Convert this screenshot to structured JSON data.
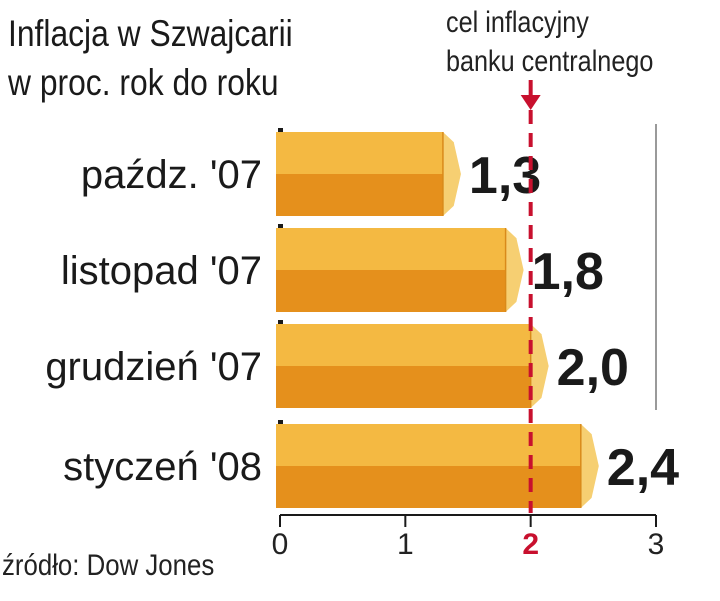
{
  "title": [
    "Inflacja w Szwajcarii",
    "w proc. rok do roku"
  ],
  "target_note": [
    "cel inflacyjny",
    "banku centralnego"
  ],
  "source": "źródło: Dow Jones",
  "colors": {
    "bar_top": "#f4b942",
    "bar_bottom": "#e5901c",
    "bar_end": "#f6cf72",
    "target_line": "#c8102e",
    "text": "#1a1a1a"
  },
  "chart_data": {
    "type": "bar",
    "orientation": "horizontal",
    "categories": [
      "paźdz. '07",
      "listopad '07",
      "grudzień '07",
      "styczeń '08"
    ],
    "values": [
      1.3,
      1.8,
      2.0,
      2.4
    ],
    "value_labels": [
      "1,3",
      "1,8",
      "2,0",
      "2,4"
    ],
    "xlim": [
      0,
      3
    ],
    "x_ticks": [
      0,
      1,
      2,
      3
    ],
    "x_tick_labels": [
      "0",
      "1",
      "2",
      "3"
    ],
    "target": {
      "value": 2,
      "label": "2"
    },
    "grid": false
  }
}
